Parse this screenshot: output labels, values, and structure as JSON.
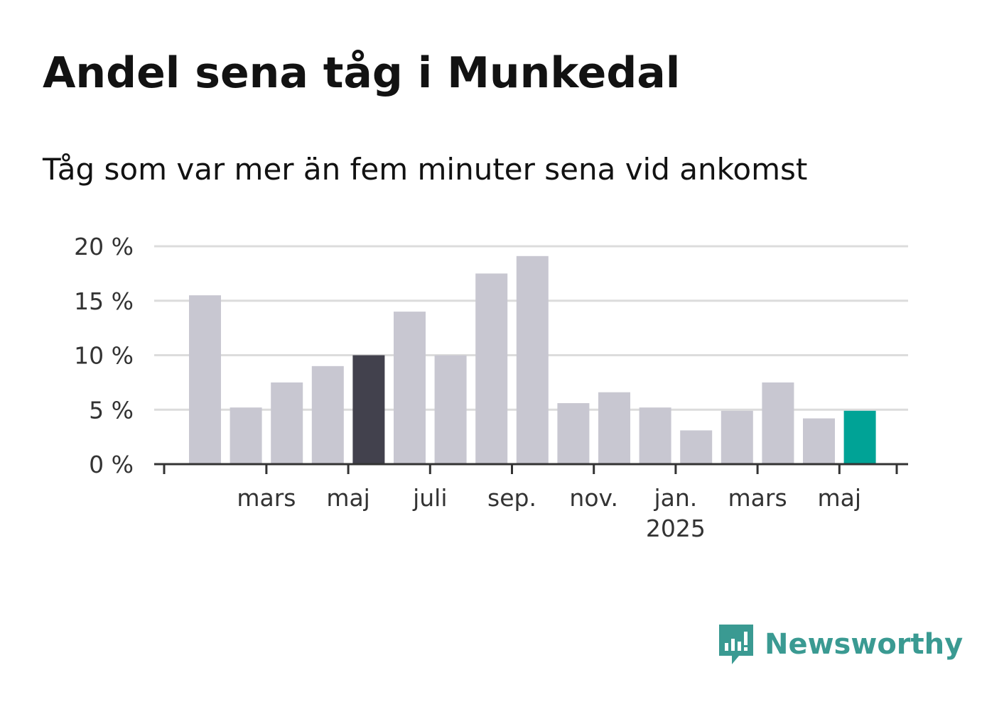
{
  "title": "Andel sena tåg i Munkedal",
  "subtitle": "Tåg som var mer än fem minuter sena vid ankomst",
  "brand": {
    "name": "Newsworthy",
    "color": "#3a9a92",
    "icon": "newsworthy-logo-icon"
  },
  "colors": {
    "bar": "#c8c7d1",
    "highlight": "#42414d",
    "current": "#00a396",
    "grid": "#dcdcdc",
    "axis": "#333333"
  },
  "chart_data": {
    "type": "bar",
    "title": "Andel sena tåg i Munkedal",
    "subtitle": "Tåg som var mer än fem minuter sena vid ankomst",
    "categories": [
      "2024-02",
      "2024-03",
      "2024-04",
      "2024-05",
      "2024-06",
      "2024-07",
      "2024-08",
      "2024-09",
      "2024-10",
      "2024-11",
      "2024-12",
      "2025-01",
      "2025-02",
      "2025-03",
      "2025-04",
      "2025-05",
      "2025-06"
    ],
    "values": [
      15.5,
      5.2,
      7.5,
      9.0,
      10.0,
      14.0,
      10.0,
      17.5,
      19.1,
      5.6,
      6.6,
      5.2,
      3.1,
      4.9,
      7.5,
      4.2,
      4.9
    ],
    "highlight_index": 4,
    "current_index": 16,
    "ylim": [
      0,
      20
    ],
    "yticks": [
      0,
      5,
      10,
      15,
      20
    ],
    "ytick_labels": [
      "0 %",
      "5 %",
      "10 %",
      "15 %",
      "20 %"
    ],
    "xtick_labels": [
      {
        "category": "2024-03",
        "label": "mars"
      },
      {
        "category": "2024-05",
        "label": "maj"
      },
      {
        "category": "2024-07",
        "label": "juli"
      },
      {
        "category": "2024-09",
        "label": "sep."
      },
      {
        "category": "2024-11",
        "label": "nov."
      },
      {
        "category": "2025-01",
        "label": "jan.",
        "sublabel": "2025"
      },
      {
        "category": "2025-03",
        "label": "mars"
      },
      {
        "category": "2025-05",
        "label": "maj"
      }
    ],
    "grid": true,
    "legend": "none",
    "xlabel": "",
    "ylabel": ""
  }
}
